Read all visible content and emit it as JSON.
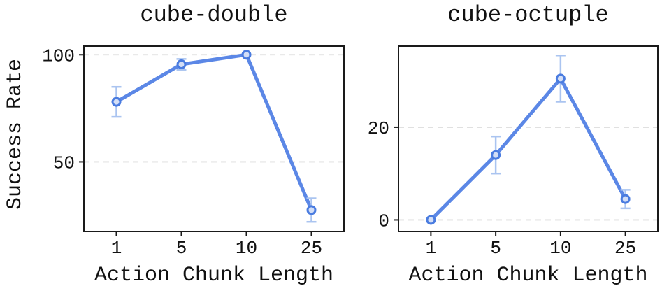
{
  "figure": {
    "background": "#ffffff",
    "shared_xlabel": "Action Chunk Length",
    "shared_ylabel": "Success Rate"
  },
  "colors": {
    "line": "#5b87e6",
    "marker_fill": "#d3def6",
    "marker_edge": "#4a7ce0",
    "error_bar": "#aac4f0",
    "grid": "#dcdcdc",
    "spine": "#1a1a1a",
    "text": "#111111"
  },
  "chart_data": [
    {
      "type": "line",
      "title": "cube-double",
      "xlabel": "Action Chunk Length",
      "ylabel": "Success Rate",
      "x": [
        1,
        5,
        10,
        25
      ],
      "x_tick_labels": [
        "1",
        "5",
        "10",
        "25"
      ],
      "values": [
        78,
        95.5,
        100,
        27.5
      ],
      "yerr": [
        7,
        2.5,
        0,
        5.5
      ],
      "y_ticks": [
        50,
        100
      ],
      "ylim": [
        17.5,
        104
      ],
      "grid": true,
      "legend": "none",
      "marker": "o"
    },
    {
      "type": "line",
      "title": "cube-octuple",
      "xlabel": "Action Chunk Length",
      "ylabel": "",
      "x": [
        1,
        5,
        10,
        25
      ],
      "x_tick_labels": [
        "1",
        "5",
        "10",
        "25"
      ],
      "values": [
        0,
        14,
        30.5,
        4.5
      ],
      "yerr": [
        0,
        4,
        5,
        2
      ],
      "y_ticks": [
        0,
        20
      ],
      "ylim": [
        -2.5,
        37.5
      ],
      "grid": true,
      "legend": "none",
      "marker": "o"
    }
  ]
}
